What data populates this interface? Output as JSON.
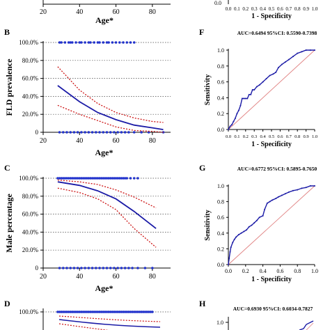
{
  "colors": {
    "line": "#1a1aa6",
    "ci": "#cc1111",
    "point": "#2233cc",
    "axis": "#000000",
    "diag": "#e08080"
  },
  "top_strip": {
    "left_xticks": [
      "20",
      "40",
      "60",
      "80"
    ],
    "left_xlabel": "Age*",
    "right_xticks": [
      "0.0",
      "0.1",
      "0.2",
      "0.3",
      "0.4",
      "0.5",
      "0.6",
      "0.7",
      "0.8",
      "0.9",
      "1.0"
    ],
    "right_xlabel": "1 - Specificity",
    "right_ytick": "0.0"
  },
  "panel_letters": {
    "B": "B",
    "C": "C",
    "D": "D",
    "F": "F",
    "G": "G",
    "H": "H"
  },
  "partial_labels": {
    "d_ytick": "100.0%",
    "h_ytick": "1.0",
    "h_auc": "AUC=0.6930 95%CI: 0.6034-0.7827"
  },
  "chart_data": [
    {
      "panel": "B",
      "type": "scatter",
      "title": "",
      "xlabel": "Age*",
      "ylabel": "FLD prevalence",
      "xlim": [
        20,
        90
      ],
      "ylim": [
        0,
        100
      ],
      "xticks": [
        "20",
        "40",
        "60",
        "80"
      ],
      "yticks": [
        "0",
        "20.0%",
        "40.0%",
        "60.0%",
        "80.0%",
        "100.0%"
      ],
      "grid": "dotted horizontal",
      "points_top": [
        29,
        30,
        32,
        34,
        35,
        36,
        38,
        40,
        41,
        43,
        45,
        46,
        48,
        50,
        51,
        53,
        55,
        56,
        58,
        60,
        62,
        64,
        66,
        68,
        70
      ],
      "points_bottom": [
        29,
        31,
        33,
        35,
        37,
        39,
        41,
        43,
        45,
        47,
        49,
        51,
        53,
        55,
        57,
        59,
        61,
        63,
        65,
        67,
        70,
        74,
        78,
        86
      ],
      "fit": {
        "x": [
          28,
          40,
          50,
          60,
          70,
          80,
          86
        ],
        "y": [
          52,
          34,
          22,
          14,
          8,
          5,
          3
        ]
      },
      "ci_upper": {
        "x": [
          28,
          40,
          50,
          60,
          70,
          80,
          86
        ],
        "y": [
          73,
          47,
          32,
          22,
          16,
          12,
          11
        ]
      },
      "ci_lower": {
        "x": [
          28,
          40,
          50,
          60,
          70,
          80,
          86
        ],
        "y": [
          30,
          20,
          13,
          6,
          2,
          1,
          0
        ]
      }
    },
    {
      "panel": "C",
      "type": "scatter",
      "title": "",
      "xlabel": "Age*",
      "ylabel": "Male percentage",
      "xlim": [
        20,
        90
      ],
      "ylim": [
        0,
        100
      ],
      "xticks": [
        "20",
        "40",
        "60",
        "80"
      ],
      "yticks": [
        "0",
        "20.0%",
        "40.0%",
        "60.0%",
        "80.0%",
        "100.0%"
      ],
      "grid": "dotted horizontal",
      "points_top": [
        28,
        29,
        30,
        31,
        32,
        33,
        34,
        35,
        36,
        37,
        38,
        39,
        40,
        41,
        42,
        43,
        44,
        45,
        46,
        47,
        48,
        49,
        50,
        51,
        52,
        53,
        54,
        55,
        56,
        57,
        58,
        59,
        60,
        61,
        62,
        63,
        64,
        65,
        66,
        68,
        70,
        72
      ],
      "points_bottom": [
        29,
        31,
        33,
        35,
        37,
        39,
        41,
        43,
        45,
        47,
        49,
        51,
        53,
        55,
        57,
        59,
        61,
        63,
        65,
        67,
        69,
        72,
        76,
        80
      ],
      "fit": {
        "x": [
          28,
          40,
          50,
          60,
          70,
          82
        ],
        "y": [
          96,
          92,
          86,
          77,
          63,
          44
        ]
      },
      "ci_upper": {
        "x": [
          28,
          40,
          50,
          60,
          70,
          82
        ],
        "y": [
          98,
          96,
          93,
          87,
          79,
          67
        ]
      },
      "ci_lower": {
        "x": [
          28,
          40,
          50,
          60,
          70,
          82
        ],
        "y": [
          89,
          84,
          77,
          65,
          44,
          23
        ]
      }
    },
    {
      "panel": "F",
      "type": "line",
      "title": "AUC=0.6494 95%CI: 0.5590-0.7398",
      "xlabel": "1 - Specificity",
      "ylabel": "Sensitivity",
      "xlim": [
        0,
        1
      ],
      "ylim": [
        0,
        1
      ],
      "xticks": [
        "0.0",
        "0.1",
        "0.2",
        "0.3",
        "0.4",
        "0.5",
        "0.6",
        "0.7",
        "0.8",
        "0.9",
        "1.0"
      ],
      "yticks": [
        "0.0",
        "0.2",
        "0.4",
        "0.6",
        "0.8",
        "1.0"
      ],
      "roc": {
        "x": [
          0,
          0.02,
          0.04,
          0.06,
          0.08,
          0.1,
          0.12,
          0.14,
          0.16,
          0.18,
          0.2,
          0.22,
          0.24,
          0.26,
          0.28,
          0.3,
          0.33,
          0.36,
          0.4,
          0.44,
          0.48,
          0.52,
          0.55,
          0.58,
          0.62,
          0.66,
          0.7,
          0.75,
          0.8,
          0.85,
          0.9,
          0.95,
          1.0
        ],
        "y": [
          0,
          0.04,
          0.06,
          0.1,
          0.14,
          0.2,
          0.24,
          0.3,
          0.39,
          0.39,
          0.39,
          0.39,
          0.44,
          0.44,
          0.5,
          0.5,
          0.54,
          0.56,
          0.6,
          0.64,
          0.68,
          0.7,
          0.72,
          0.78,
          0.82,
          0.85,
          0.88,
          0.92,
          0.96,
          0.98,
          1.0,
          1.0,
          1.0
        ]
      }
    },
    {
      "panel": "G",
      "type": "line",
      "title": "AUC=0.6772 95%CI: 0.5895-0.7650",
      "xlabel": "1 - Specificity",
      "ylabel": "Sensitivity",
      "xlim": [
        0,
        1
      ],
      "ylim": [
        0,
        1
      ],
      "xticks": [
        "0.0",
        "0.2",
        "0.4",
        "0.6",
        "0.8",
        "1.0"
      ],
      "yticks": [
        "0.0",
        "0.2",
        "0.4",
        "0.6",
        "0.8",
        "1.0"
      ],
      "roc": {
        "x": [
          0,
          0.01,
          0.02,
          0.03,
          0.05,
          0.07,
          0.09,
          0.12,
          0.15,
          0.18,
          0.21,
          0.24,
          0.27,
          0.3,
          0.33,
          0.36,
          0.4,
          0.42,
          0.45,
          0.48,
          0.51,
          0.55,
          0.58,
          0.62,
          0.66,
          0.7,
          0.75,
          0.8,
          0.85,
          0.9,
          0.95,
          1.0
        ],
        "y": [
          0,
          0.08,
          0.16,
          0.22,
          0.28,
          0.32,
          0.35,
          0.38,
          0.4,
          0.42,
          0.44,
          0.48,
          0.5,
          0.53,
          0.56,
          0.6,
          0.62,
          0.7,
          0.78,
          0.8,
          0.82,
          0.84,
          0.86,
          0.88,
          0.9,
          0.92,
          0.94,
          0.95,
          0.97,
          0.98,
          1.0,
          1.0
        ]
      }
    }
  ]
}
